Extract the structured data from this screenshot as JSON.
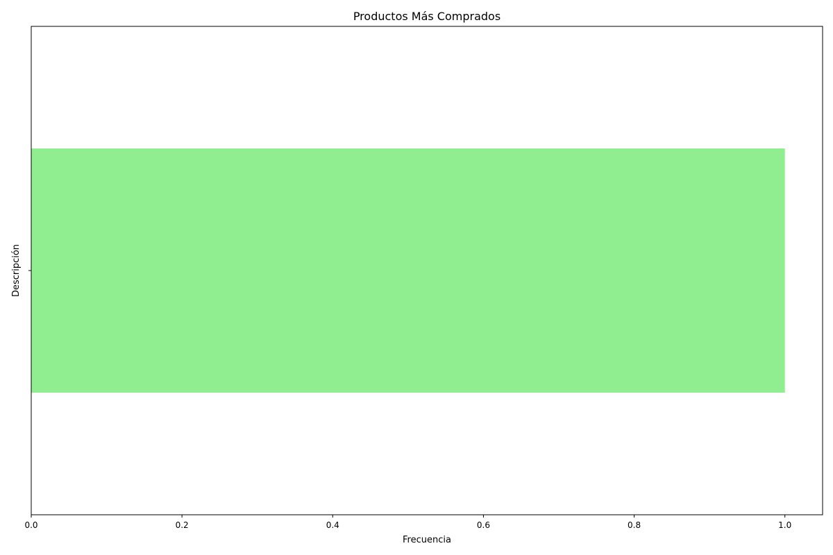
{
  "chart_data": {
    "type": "bar",
    "orientation": "horizontal",
    "title": "Productos Más Comprados",
    "xlabel": "Frecuencia",
    "ylabel": "Descripción",
    "categories": [
      ""
    ],
    "values": [
      1.0
    ],
    "xlim": [
      0,
      1.05
    ],
    "xticks": [
      0,
      0.2,
      0.4,
      0.6,
      0.8,
      1.0
    ],
    "xtick_labels": [
      "0.0",
      "0.2",
      "0.4",
      "0.6",
      "0.8",
      "1.0"
    ],
    "bar_color": "#90EE90",
    "grid": false,
    "legend": "none"
  }
}
